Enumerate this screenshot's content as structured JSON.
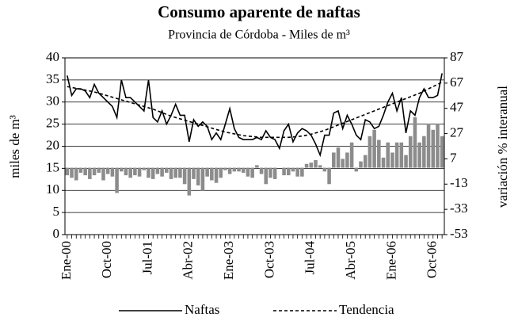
{
  "chart_data": {
    "type": "combo",
    "title": "Consumo aparente de naftas",
    "subtitle": "Provincia de Córdoba - Miles de m³",
    "y_label": "miles de m³",
    "y2_label": "variación % interanual",
    "categories": [
      "Ene-00",
      null,
      null,
      null,
      null,
      null,
      null,
      null,
      null,
      "Oct-00",
      null,
      null,
      null,
      null,
      null,
      null,
      null,
      null,
      "Jul-01",
      null,
      null,
      null,
      null,
      null,
      null,
      null,
      null,
      "Abr-02",
      null,
      null,
      null,
      null,
      null,
      null,
      null,
      null,
      "Ene-03",
      null,
      null,
      null,
      null,
      null,
      null,
      null,
      null,
      "Oct-03",
      null,
      null,
      null,
      null,
      null,
      null,
      null,
      null,
      "Jul-04",
      null,
      null,
      null,
      null,
      null,
      null,
      null,
      null,
      "Abr-05",
      null,
      null,
      null,
      null,
      null,
      null,
      null,
      null,
      "Ene-06",
      null,
      null,
      null,
      null,
      null,
      null,
      null,
      null,
      "Oct-06",
      null,
      null
    ],
    "series": [
      {
        "name": "Naftas",
        "kind": "line",
        "color": "#000000",
        "values": [
          36,
          31.5,
          33,
          33,
          32.5,
          31,
          34,
          32,
          31,
          30,
          29,
          26.5,
          35,
          31,
          31,
          30,
          29,
          28,
          35,
          26.5,
          25.5,
          28,
          25,
          27,
          29.5,
          27,
          27,
          21,
          26,
          24.5,
          25.5,
          24.5,
          21.5,
          23,
          21.5,
          25,
          28.5,
          24,
          22,
          21.5,
          21.5,
          21.5,
          22,
          21.5,
          23.5,
          22,
          21.5,
          19.5,
          23.5,
          25,
          21,
          23,
          24,
          23.5,
          22.5,
          20.5,
          18,
          22.5,
          22.5,
          27.5,
          28,
          24,
          27,
          25,
          22.5,
          21.5,
          26,
          25.5,
          24,
          24.5,
          27,
          30,
          32,
          28,
          31,
          23,
          28,
          27,
          31,
          33,
          31,
          31,
          31.5,
          36.5
        ]
      },
      {
        "name": "Tendencia",
        "kind": "dashed",
        "color": "#000000",
        "values": [
          33.5,
          33.3,
          33.1,
          32.9,
          32.7,
          32.5,
          32.3,
          32,
          31.7,
          31.4,
          31.1,
          30.8,
          30.5,
          30.2,
          29.9,
          29.6,
          29.3,
          29,
          28.7,
          28.4,
          28,
          27.6,
          27.2,
          26.8,
          26.5,
          26.2,
          25.9,
          25.6,
          25.3,
          25,
          24.7,
          24.4,
          24.1,
          23.8,
          23.5,
          23.2,
          23,
          22.8,
          22.6,
          22.4,
          22.3,
          22.2,
          22.1,
          22,
          22,
          22,
          22,
          22,
          22,
          22,
          22.1,
          22.2,
          22.3,
          22.5,
          22.7,
          23,
          23.3,
          23.6,
          24,
          24.4,
          24.8,
          25.2,
          25.6,
          26,
          26.4,
          26.8,
          27.2,
          27.6,
          28,
          28.4,
          28.8,
          29.2,
          29.6,
          30,
          30.4,
          30.8,
          31.2,
          31.6,
          32,
          32.5,
          33,
          33.5,
          34,
          34.5
        ]
      },
      {
        "kind": "bar",
        "axis": "y2",
        "color": "#8c8c8c",
        "values": [
          -6,
          -8,
          -10,
          -4,
          -6,
          -9,
          -6,
          -4,
          -10,
          -5,
          -7,
          -20,
          -3,
          -6,
          -8,
          -6,
          -7,
          -2,
          -8,
          -9,
          -5,
          -7,
          -4,
          -9,
          -8,
          -8,
          -13,
          -22,
          -9,
          -14,
          -18,
          -7,
          -10,
          -12,
          -8,
          -2,
          -5,
          -3,
          -3,
          -4,
          -7,
          -8,
          2,
          -5,
          -13,
          -8,
          -9,
          0,
          -6,
          -6,
          -3,
          -7,
          -7,
          3,
          4,
          6,
          2,
          -3,
          -13,
          12,
          16,
          7,
          12,
          20,
          -3,
          5,
          10,
          25,
          30,
          22,
          8,
          20,
          12,
          20,
          20,
          10,
          25,
          40,
          20,
          25,
          35,
          30,
          35,
          25
        ]
      }
    ],
    "ylim": [
      0,
      40
    ],
    "yticks": [
      0,
      5,
      10,
      15,
      20,
      25,
      30,
      35,
      40
    ],
    "y2lim": [
      -53,
      87
    ],
    "y2ticks": [
      -53,
      -33,
      -13,
      7,
      27,
      47,
      67,
      87
    ],
    "grid": true
  }
}
